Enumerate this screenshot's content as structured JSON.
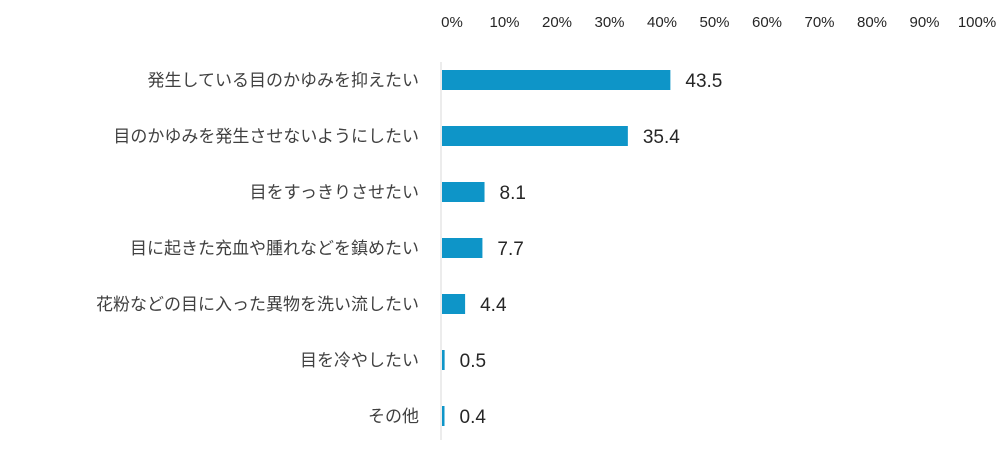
{
  "chart_data": {
    "type": "bar",
    "orientation": "horizontal",
    "categories": [
      "発生している目のかゆみを抑えたい",
      "目のかゆみを発生させないようにしたい",
      "目をすっきりさせたい",
      "目に起きた充血や腫れなどを鎮めたい",
      "花粉などの目に入った異物を洗い流したい",
      "目を冷やしたい",
      "その他"
    ],
    "values": [
      43.5,
      35.4,
      8.1,
      7.7,
      4.4,
      0.5,
      0.4
    ],
    "value_labels": [
      "43.5",
      "35.4",
      "8.1",
      "7.7",
      "4.4",
      "0.5",
      "0.4"
    ],
    "xlim": [
      0,
      100
    ],
    "x_ticks": [
      "0%",
      "10%",
      "20%",
      "30%",
      "40%",
      "50%",
      "60%",
      "70%",
      "80%",
      "90%",
      "100%"
    ],
    "x_axis_position": "top",
    "grid": false,
    "bar_color": "#0e95c8",
    "axis_line_color": "#d9d9d9"
  }
}
